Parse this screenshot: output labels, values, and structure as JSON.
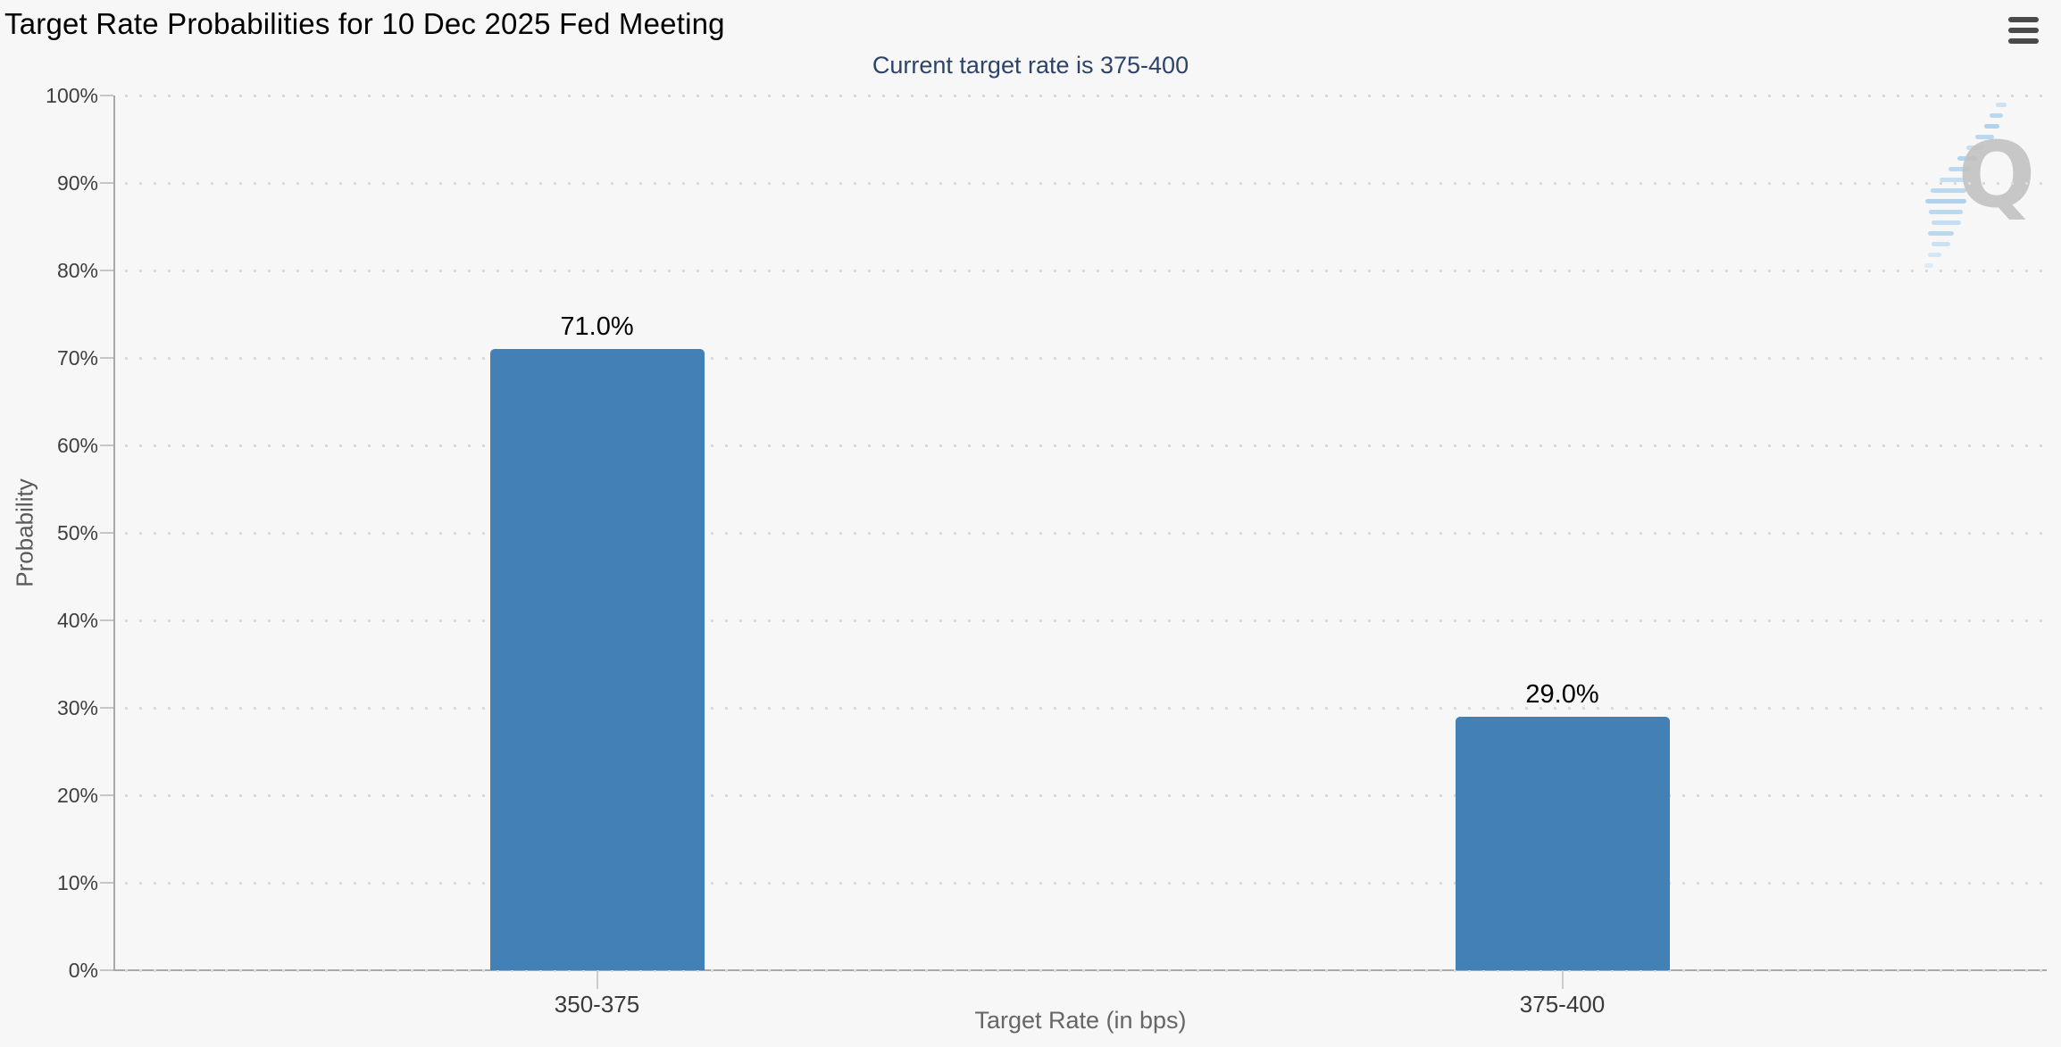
{
  "chart_data": {
    "type": "bar",
    "title": "Target Rate Probabilities for 10 Dec 2025 Fed Meeting",
    "subtitle": "Current target rate is 375-400",
    "categories": [
      "350-375",
      "375-400"
    ],
    "values": [
      71.0,
      29.0
    ],
    "value_labels": [
      "71.0%",
      "29.0%"
    ],
    "xlabel": "Target Rate (in bps)",
    "ylabel": "Probability",
    "ylim": [
      0,
      100
    ],
    "ytick_step": 10,
    "ytick_labels": [
      "0%",
      "10%",
      "20%",
      "30%",
      "40%",
      "50%",
      "60%",
      "70%",
      "80%",
      "90%",
      "100%"
    ],
    "grid": "dotted-horizontal",
    "legend": "none",
    "bar_color": "#4280b6"
  },
  "colors": {
    "background": "#f7f7f7",
    "bar": "#4280b6",
    "subtitle": "#2d4468",
    "axis_line": "#a9a9a9",
    "grid_dot": "#dadada",
    "tick_label": "#3f3f3f",
    "axis_title": "#666666",
    "menu_icon": "#4a4a4a",
    "watermark_gray": "#c2c2c2",
    "watermark_blue": "#a5cfef"
  },
  "menu": {
    "icon": "hamburger-menu-icon"
  },
  "watermark": {
    "letter": "Q"
  }
}
